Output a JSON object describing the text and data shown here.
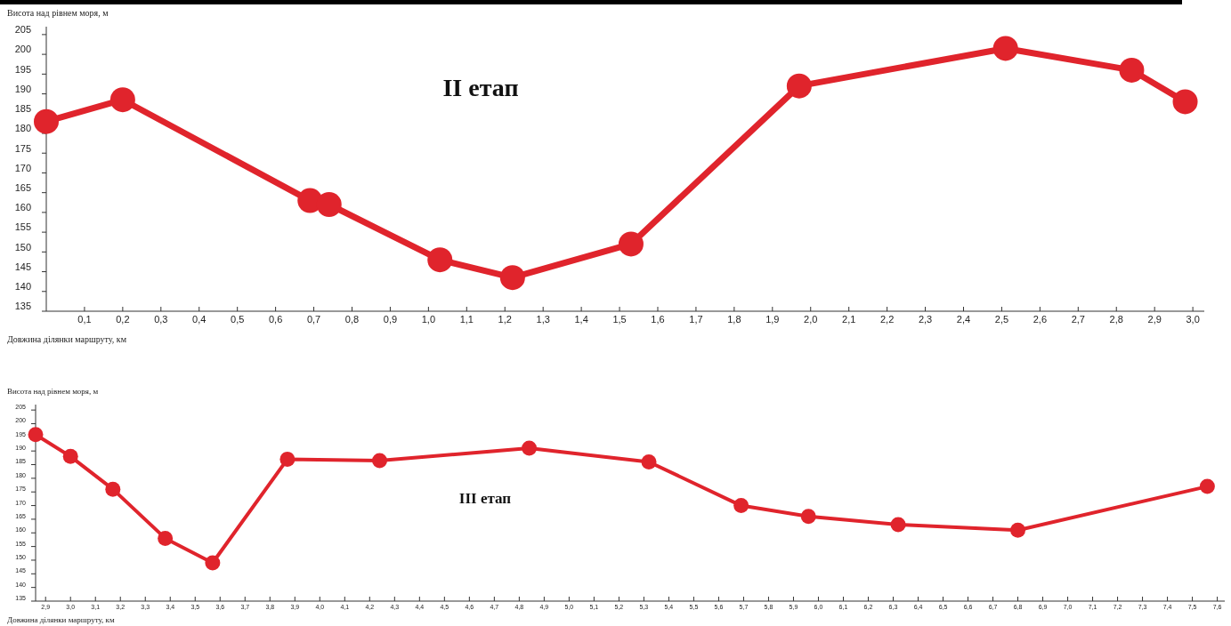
{
  "chart_data": [
    {
      "type": "line",
      "title": "II етап",
      "xlabel": "Довжина ділянки маршруту, км",
      "ylabel": "Висота над рівнем моря, м",
      "marker": "circle",
      "line_style": "solid",
      "grid": false,
      "x": [
        0,
        0.2,
        0.69,
        0.74,
        1.03,
        1.22,
        1.53,
        1.97,
        2.51,
        2.84,
        2.98
      ],
      "series": [
        {
          "color": "#e0242c",
          "values": [
            183,
            188.5,
            163,
            162,
            148,
            143.5,
            152,
            192,
            201.5,
            196,
            188
          ]
        }
      ],
      "xlim": [
        0,
        3.03
      ],
      "ylim": [
        135,
        207
      ],
      "xticks": [
        {
          "value": 0.1,
          "label": "0,1"
        },
        {
          "value": 0.2,
          "label": "0,2"
        },
        {
          "value": 0.3,
          "label": "0,3"
        },
        {
          "value": 0.4,
          "label": "0,4"
        },
        {
          "value": 0.5,
          "label": "0,5"
        },
        {
          "value": 0.6,
          "label": "0,6"
        },
        {
          "value": 0.7,
          "label": "0,7"
        },
        {
          "value": 0.8,
          "label": "0,8"
        },
        {
          "value": 0.9,
          "label": "0,9"
        },
        {
          "value": 1.0,
          "label": "1,0"
        },
        {
          "value": 1.1,
          "label": "1,1"
        },
        {
          "value": 1.2,
          "label": "1,2"
        },
        {
          "value": 1.3,
          "label": "1,3"
        },
        {
          "value": 1.4,
          "label": "1,4"
        },
        {
          "value": 1.5,
          "label": "1,5"
        },
        {
          "value": 1.6,
          "label": "1,6"
        },
        {
          "value": 1.7,
          "label": "1,7"
        },
        {
          "value": 1.8,
          "label": "1,8"
        },
        {
          "value": 1.9,
          "label": "1,9"
        },
        {
          "value": 2.0,
          "label": "2,0"
        },
        {
          "value": 2.1,
          "label": "2,1"
        },
        {
          "value": 2.2,
          "label": "2,2"
        },
        {
          "value": 2.3,
          "label": "2,3"
        },
        {
          "value": 2.4,
          "label": "2,4"
        },
        {
          "value": 2.5,
          "label": "2,5"
        },
        {
          "value": 2.6,
          "label": "2,6"
        },
        {
          "value": 2.7,
          "label": "2,7"
        },
        {
          "value": 2.8,
          "label": "2,8"
        },
        {
          "value": 2.9,
          "label": "2,9"
        },
        {
          "value": 3.0,
          "label": "3,0"
        }
      ],
      "yticks": [
        135,
        140,
        145,
        150,
        155,
        160,
        165,
        170,
        175,
        180,
        185,
        190,
        195,
        200,
        205
      ]
    },
    {
      "type": "line",
      "title": "III етап",
      "xlabel": "Довжина ділянки маршруту, км",
      "ylabel": "Висота над рівнем моря, м",
      "marker": "circle",
      "line_style": "solid",
      "grid": false,
      "x": [
        2.86,
        3.0,
        3.17,
        3.38,
        3.57,
        3.87,
        4.24,
        4.84,
        5.32,
        5.69,
        5.96,
        6.32,
        6.8,
        7.56
      ],
      "series": [
        {
          "color": "#e0242c",
          "values": [
            196,
            188,
            176,
            158,
            149,
            187,
            186.5,
            191,
            186,
            170,
            166,
            163,
            161,
            177
          ]
        }
      ],
      "xlim": [
        2.86,
        7.63
      ],
      "ylim": [
        135,
        207
      ],
      "xticks": [
        {
          "value": 2.9,
          "label": "2,9"
        },
        {
          "value": 3.0,
          "label": "3,0"
        },
        {
          "value": 3.1,
          "label": "3,1"
        },
        {
          "value": 3.2,
          "label": "3,2"
        },
        {
          "value": 3.3,
          "label": "3,3"
        },
        {
          "value": 3.4,
          "label": "3,4"
        },
        {
          "value": 3.5,
          "label": "3,5"
        },
        {
          "value": 3.6,
          "label": "3,6"
        },
        {
          "value": 3.7,
          "label": "3,7"
        },
        {
          "value": 3.8,
          "label": "3,8"
        },
        {
          "value": 3.9,
          "label": "3,9"
        },
        {
          "value": 4.0,
          "label": "4,0"
        },
        {
          "value": 4.1,
          "label": "4,1"
        },
        {
          "value": 4.2,
          "label": "4,2"
        },
        {
          "value": 4.3,
          "label": "4,3"
        },
        {
          "value": 4.4,
          "label": "4,4"
        },
        {
          "value": 4.5,
          "label": "4,5"
        },
        {
          "value": 4.6,
          "label": "4,6"
        },
        {
          "value": 4.7,
          "label": "4,7"
        },
        {
          "value": 4.8,
          "label": "4,8"
        },
        {
          "value": 4.9,
          "label": "4,9"
        },
        {
          "value": 5.0,
          "label": "5,0"
        },
        {
          "value": 5.1,
          "label": "5,1"
        },
        {
          "value": 5.2,
          "label": "5,2"
        },
        {
          "value": 5.3,
          "label": "5,3"
        },
        {
          "value": 5.4,
          "label": "5,4"
        },
        {
          "value": 5.5,
          "label": "5,5"
        },
        {
          "value": 5.6,
          "label": "5,6"
        },
        {
          "value": 5.7,
          "label": "5,7"
        },
        {
          "value": 5.8,
          "label": "5,8"
        },
        {
          "value": 5.9,
          "label": "5,9"
        },
        {
          "value": 6.0,
          "label": "6,0"
        },
        {
          "value": 6.1,
          "label": "6,1"
        },
        {
          "value": 6.2,
          "label": "6,2"
        },
        {
          "value": 6.3,
          "label": "6,3"
        },
        {
          "value": 6.4,
          "label": "6,4"
        },
        {
          "value": 6.5,
          "label": "6,5"
        },
        {
          "value": 6.6,
          "label": "6,6"
        },
        {
          "value": 6.7,
          "label": "6,7"
        },
        {
          "value": 6.8,
          "label": "6,8"
        },
        {
          "value": 6.9,
          "label": "6,9"
        },
        {
          "value": 7.0,
          "label": "7,0"
        },
        {
          "value": 7.1,
          "label": "7,1"
        },
        {
          "value": 7.2,
          "label": "7,2"
        },
        {
          "value": 7.3,
          "label": "7,3"
        },
        {
          "value": 7.4,
          "label": "7,4"
        },
        {
          "value": 7.5,
          "label": "7,5"
        },
        {
          "value": 7.6,
          "label": "7,6"
        }
      ],
      "yticks": [
        135,
        140,
        145,
        150,
        155,
        160,
        165,
        170,
        175,
        180,
        185,
        190,
        195,
        200,
        205
      ]
    }
  ]
}
